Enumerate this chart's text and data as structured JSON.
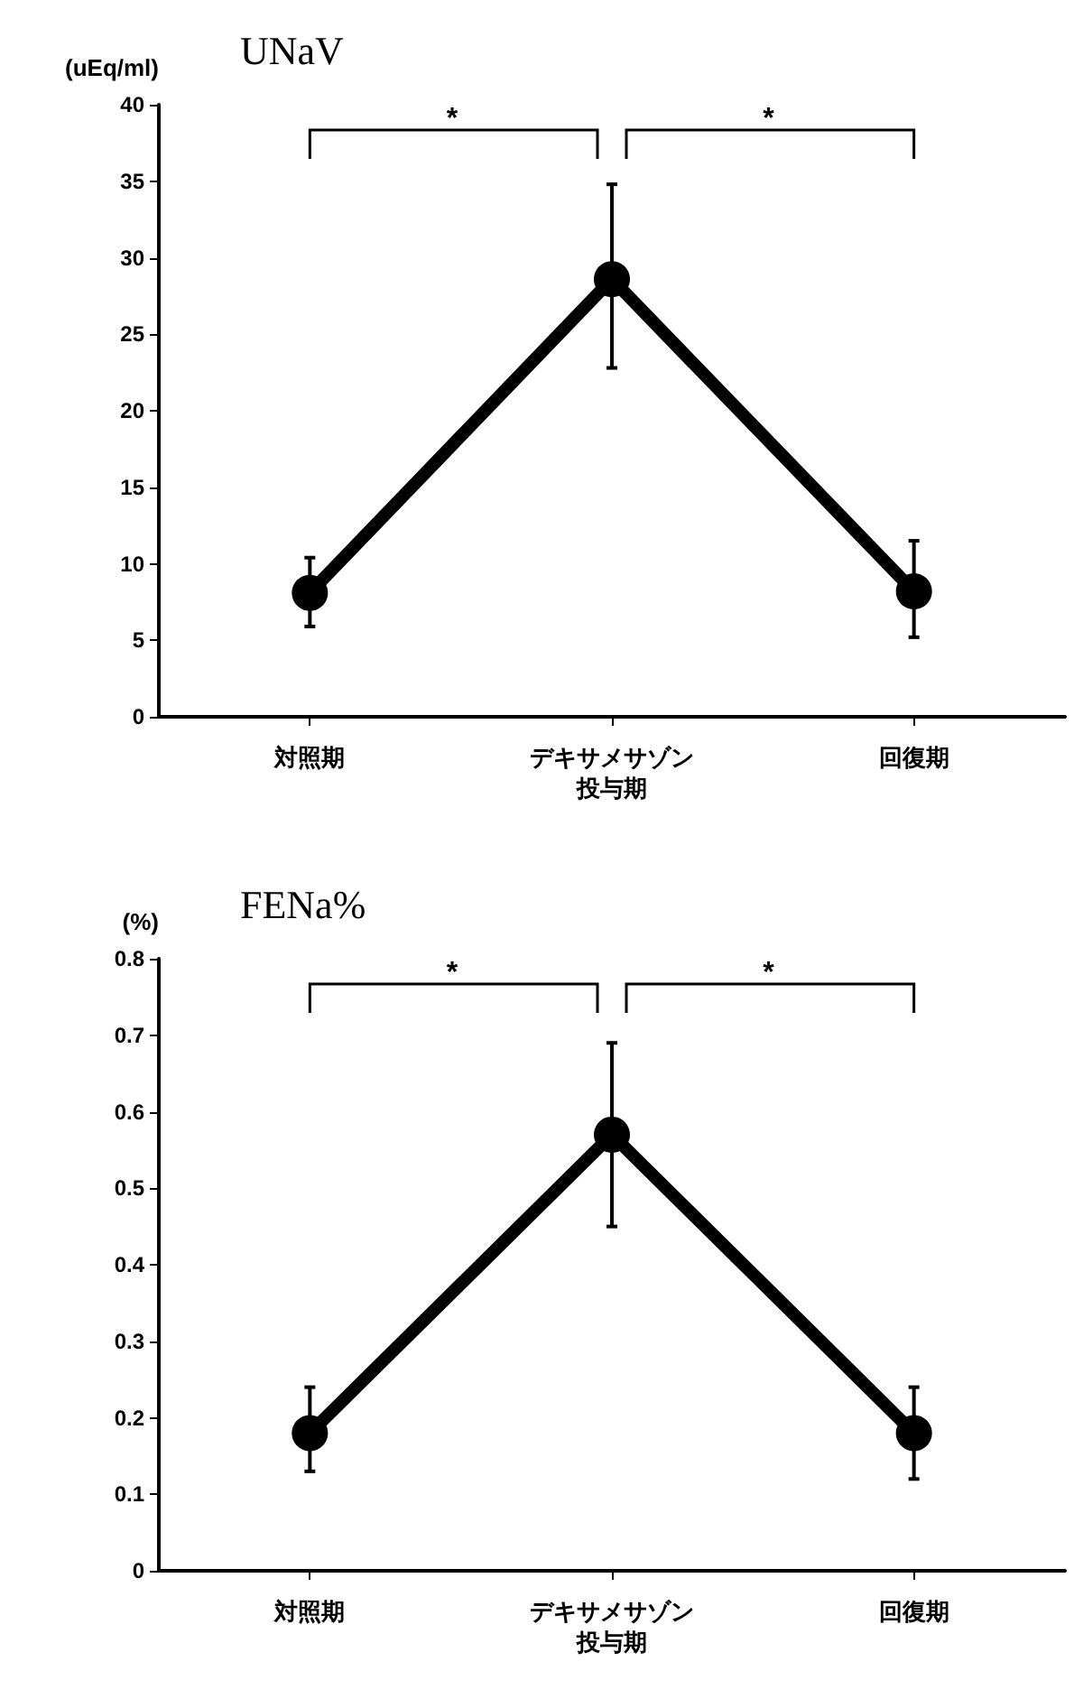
{
  "chart_data": [
    {
      "type": "line",
      "title": "UNaV",
      "ylabel": "(uEq/ml)",
      "categories": [
        "対照期",
        "デキサメサゾン投与期",
        "回復期"
      ],
      "values": [
        8.1,
        28.6,
        8.2
      ],
      "errors": [
        [
          5.9,
          10.4
        ],
        [
          22.8,
          34.8
        ],
        [
          5.2,
          11.5
        ]
      ],
      "color": "#000000",
      "marker": "circle",
      "line_style": "solid",
      "ylim": [
        0,
        40
      ],
      "yticks": [
        0,
        5,
        10,
        15,
        20,
        25,
        30,
        35,
        40
      ],
      "grid": false,
      "annotations": [
        "*",
        "*"
      ]
    },
    {
      "type": "line",
      "title": "FENa%",
      "ylabel": "(%)",
      "categories": [
        "対照期",
        "デキサメサゾン投与期",
        "回復期"
      ],
      "values": [
        0.18,
        0.57,
        0.18
      ],
      "errors": [
        [
          0.13,
          0.24
        ],
        [
          0.45,
          0.69
        ],
        [
          0.12,
          0.24
        ]
      ],
      "color": "#000000",
      "marker": "circle",
      "line_style": "solid",
      "ylim": [
        0,
        0.8
      ],
      "yticks": [
        0,
        0.1,
        0.2,
        0.3,
        0.4,
        0.5,
        0.6,
        0.7,
        0.8
      ],
      "grid": false,
      "annotations": [
        "*",
        "*"
      ]
    }
  ]
}
